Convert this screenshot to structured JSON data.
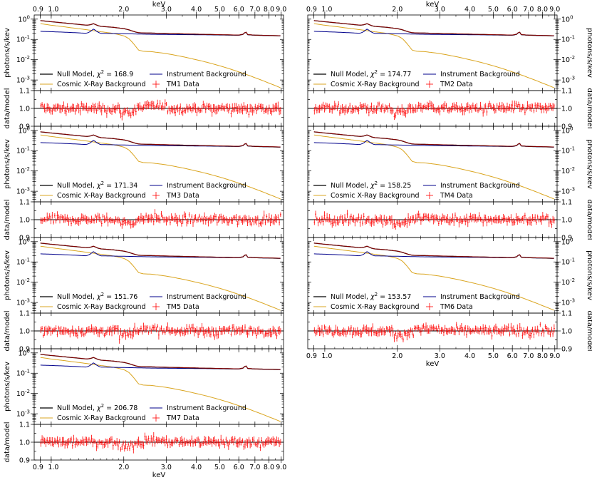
{
  "chart_data": {
    "type": "line",
    "axis_label": "keV",
    "ylabel_spectrum": "photons/s/kev",
    "ylabel_ratio": "data/model",
    "x_ticks": [
      {
        "value": 0.9,
        "label": "0.9"
      },
      {
        "value": 1.0,
        "label": "1.0"
      },
      {
        "value": 2.0,
        "label": "2.0"
      },
      {
        "value": 3.0,
        "label": "3.0"
      },
      {
        "value": 4.0,
        "label": "4.0"
      },
      {
        "value": 5.0,
        "label": "5.0"
      },
      {
        "value": 6.0,
        "label": "6.0"
      },
      {
        "value": 7.0,
        "label": "7.0"
      },
      {
        "value": 8.0,
        "label": "8.0"
      },
      {
        "value": 9.0,
        "label": "9.0"
      }
    ],
    "xlim": [
      0.85,
      9.2
    ],
    "spectrum_ylim": [
      0.0003,
      1.6
    ],
    "spectrum_yticks": [
      {
        "value": 1,
        "label": "10",
        "exp": "0"
      },
      {
        "value": 0.1,
        "label": "10",
        "exp": "-1"
      },
      {
        "value": 0.01,
        "label": "10",
        "exp": "-2"
      },
      {
        "value": 0.001,
        "label": "10",
        "exp": "-3"
      }
    ],
    "ratio_ylim": [
      0.9,
      1.1
    ],
    "ratio_yticks": [
      {
        "value": 0.9,
        "label": "0.9"
      },
      {
        "value": 1.0,
        "label": "1.0"
      },
      {
        "value": 1.1,
        "label": "1.1"
      }
    ],
    "legend": {
      "null_model": "Null Model,",
      "chi_symbol": "χ",
      "chi_exp": "2",
      "chi_eq": " = ",
      "instrument": "Instrument Background",
      "cxb": "Cosmic X-Ray Background",
      "data_suffix": " Data"
    },
    "series_colors": {
      "null_model": "#000000",
      "instrument": "#00008b",
      "cxb": "#daa520",
      "total": "#8b0000",
      "data": "#ff0000"
    },
    "instrument_background": {
      "x": [
        0.9,
        1.0,
        1.2,
        1.4,
        1.45,
        1.5,
        1.55,
        1.6,
        1.8,
        2.0,
        2.5,
        3.0,
        4.0,
        5.0,
        6.0,
        6.3,
        6.4,
        6.5,
        7.0,
        8.0,
        9.0
      ],
      "y": [
        0.25,
        0.24,
        0.22,
        0.2,
        0.24,
        0.33,
        0.24,
        0.2,
        0.195,
        0.19,
        0.18,
        0.175,
        0.17,
        0.165,
        0.16,
        0.18,
        0.26,
        0.17,
        0.16,
        0.155,
        0.15
      ]
    },
    "cosmic_xray_background": {
      "x": [
        0.9,
        1.0,
        1.2,
        1.4,
        1.6,
        1.8,
        2.0,
        2.1,
        2.2,
        2.3,
        2.4,
        2.6,
        3.0,
        4.0,
        5.0,
        6.0,
        7.0,
        8.0,
        9.0
      ],
      "y": [
        0.6,
        0.5,
        0.38,
        0.3,
        0.24,
        0.2,
        0.15,
        0.11,
        0.06,
        0.03,
        0.026,
        0.025,
        0.02,
        0.01,
        0.005,
        0.0025,
        0.0013,
        0.0007,
        0.0004
      ]
    },
    "panels": [
      {
        "id": "TM1",
        "label": "TM1",
        "chi2": "168.9",
        "bottom_axis": false
      },
      {
        "id": "TM2",
        "label": "TM2",
        "chi2": "174.77",
        "bottom_axis": false
      },
      {
        "id": "TM3",
        "label": "TM3",
        "chi2": "171.34",
        "bottom_axis": false
      },
      {
        "id": "TM4",
        "label": "TM4",
        "chi2": "158.25",
        "bottom_axis": false
      },
      {
        "id": "TM5",
        "label": "TM5",
        "chi2": "151.76",
        "bottom_axis": false
      },
      {
        "id": "TM6",
        "label": "TM6",
        "chi2": "153.57",
        "bottom_axis": true
      },
      {
        "id": "TM7",
        "label": "TM7",
        "chi2": "206.78",
        "bottom_axis": true
      }
    ]
  }
}
